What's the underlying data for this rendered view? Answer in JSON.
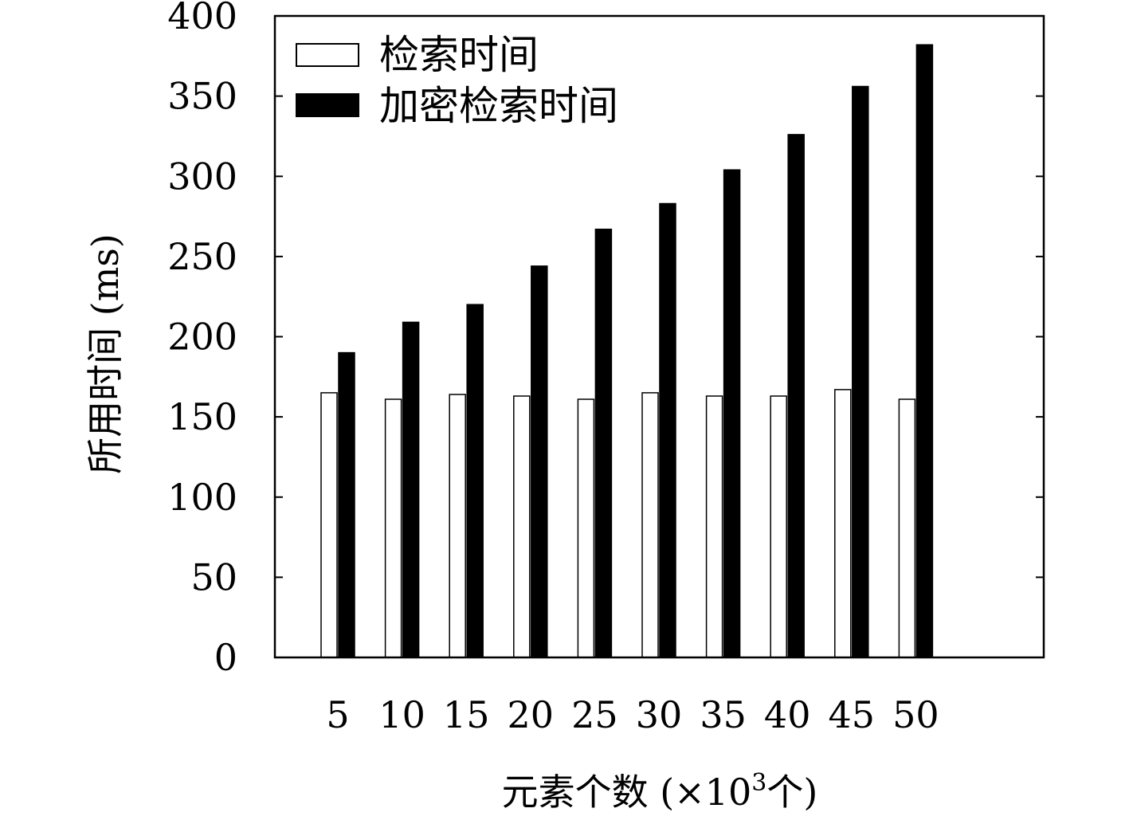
{
  "chart_data": {
    "type": "bar",
    "categories": [
      "5",
      "10",
      "15",
      "20",
      "25",
      "30",
      "35",
      "40",
      "45",
      "50"
    ],
    "series": [
      {
        "name": "检索时间",
        "values": [
          165,
          161,
          164,
          163,
          161,
          165,
          163,
          163,
          167,
          161
        ],
        "color": "#ffffff"
      },
      {
        "name": "加密检索时间",
        "values": [
          190,
          209,
          220,
          244,
          267,
          283,
          304,
          326,
          356,
          382
        ],
        "color": "#000000"
      }
    ],
    "xlabel_main": "元素个数 (×10",
    "xlabel_sup": "3",
    "xlabel_tail": "个)",
    "ylabel": "所用时间 (ms)",
    "ylim": [
      0,
      400
    ],
    "yticks": [
      "0",
      "50",
      "100",
      "150",
      "200",
      "250",
      "300",
      "350",
      "400"
    ],
    "legend_position": "top-left",
    "grid": false
  }
}
